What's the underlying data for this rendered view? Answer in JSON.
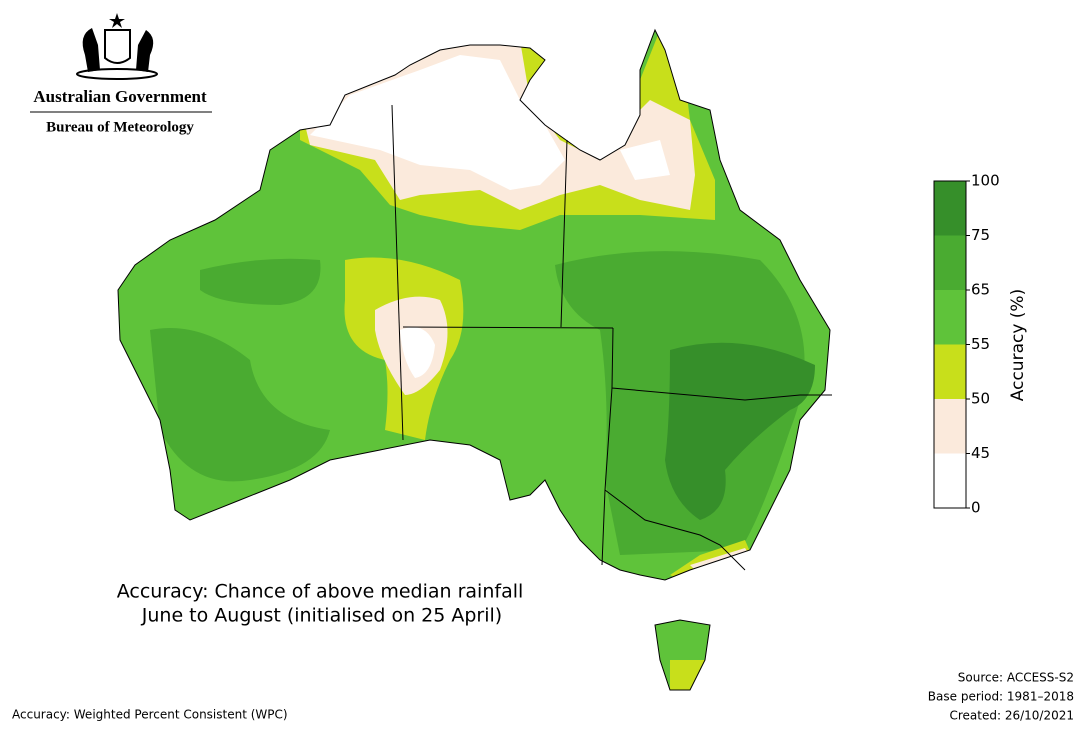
{
  "header": {
    "agency": "Australian Government",
    "bureau": "Bureau of Meteorology"
  },
  "map": {
    "title": "Accuracy: Chance of above median rainfall",
    "subtitle": "June to August (initialised on 25 April)"
  },
  "legend": {
    "title": "Accuracy (%)",
    "ticks": [
      0,
      45,
      50,
      55,
      65,
      75,
      100
    ],
    "colors": [
      "#ffffff",
      "#fbeadc",
      "#c8df1b",
      "#5fc33a",
      "#4aab31",
      "#368f2a"
    ]
  },
  "footer": {
    "metric": "Accuracy: Weighted Percent Consistent (WPC)",
    "source": "Source: ACCESS-S2",
    "base_period": "Base period: 1981–2018",
    "created": "Created: 26/10/2021"
  }
}
